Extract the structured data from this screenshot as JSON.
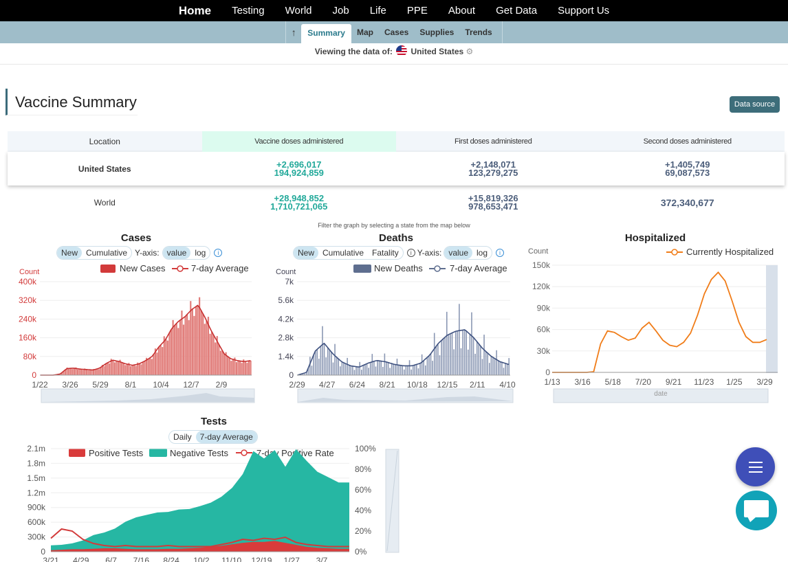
{
  "topnav": [
    "Home",
    "Testing",
    "World",
    "Job",
    "Life",
    "PPE",
    "About",
    "Get Data",
    "Support Us"
  ],
  "subnav": {
    "up_icon": "arrow-up-icon",
    "tabs": [
      "Summary",
      "Map",
      "Cases",
      "Supplies",
      "Trends"
    ],
    "active": "Summary"
  },
  "viewing": {
    "label": "Viewing the data of:",
    "location": "United States"
  },
  "page_title": "Vaccine Summary",
  "data_source_label": "Data source",
  "vaccine_table": {
    "headers": [
      "Location",
      "Vaccine doses administered",
      "First doses administered",
      "Second doses administered"
    ],
    "rows": [
      {
        "location": "United States",
        "doses_new": "+2,696,017",
        "doses_total": "194,924,859",
        "first_new": "+2,148,071",
        "first_total": "123,279,275",
        "second_new": "+1,405,749",
        "second_total": "69,087,573"
      },
      {
        "location": "World",
        "doses_new": "+28,948,852",
        "doses_total": "1,710,721,065",
        "first_new": "+15,819,326",
        "first_total": "978,653,471",
        "second_total": "372,340,677"
      }
    ]
  },
  "filter_note": "Filter the graph by selecting a state from the map below",
  "colors": {
    "cases": "#d23a3a",
    "deaths": "#5e6e8f",
    "hospitalized": "#f07c18",
    "positive": "#d93b3b",
    "negative": "#26b7a3",
    "accent": "#2a7a8c"
  },
  "cases_chart": {
    "title": "Cases",
    "toggle": [
      "New",
      "Cumulative"
    ],
    "yaxis_label": "Y-axis:",
    "scale": [
      "value",
      "log"
    ],
    "legend": [
      "New Cases",
      "7-day Average"
    ],
    "count_label": "Count",
    "yticks": [
      "400k",
      "320k",
      "240k",
      "160k",
      "80k",
      "0"
    ],
    "xticks": [
      "1/22",
      "3/26",
      "5/29",
      "8/1",
      "10/4",
      "12/7",
      "2/9"
    ]
  },
  "deaths_chart": {
    "title": "Deaths",
    "toggle": [
      "New",
      "Cumulative",
      "Fatality"
    ],
    "yaxis_label": "Y-axis:",
    "scale": [
      "value",
      "log"
    ],
    "legend": [
      "New Deaths",
      "7-day Average"
    ],
    "count_label": "Count",
    "yticks": [
      "7k",
      "5.6k",
      "4.2k",
      "2.8k",
      "1.4k",
      "0"
    ],
    "xticks": [
      "2/29",
      "4/27",
      "6/24",
      "8/21",
      "10/18",
      "12/15",
      "2/11",
      "4/10"
    ]
  },
  "hosp_chart": {
    "title": "Hospitalized",
    "legend": "Currently Hospitalized",
    "count_label": "Count",
    "yticks": [
      "150k",
      "120k",
      "90k",
      "60k",
      "30k",
      "0"
    ],
    "xticks": [
      "1/13",
      "3/16",
      "5/18",
      "7/20",
      "9/21",
      "11/23",
      "1/25",
      "3/29"
    ],
    "zoom_label": "date"
  },
  "tests_chart": {
    "title": "Tests",
    "toggle": [
      "Daily",
      "7-day Average"
    ],
    "legend": [
      "Positive Tests",
      "Negative Tests",
      "7-day Positive Rate"
    ],
    "yticks": [
      "2.1m",
      "1.8m",
      "1.5m",
      "1.2m",
      "900k",
      "600k",
      "300k",
      "0"
    ],
    "rticks": [
      "100%",
      "80%",
      "60%",
      "40%",
      "20%",
      "0%"
    ],
    "xticks": [
      "3/21",
      "4/29",
      "6/7",
      "7/16",
      "8/24",
      "10/2",
      "11/10",
      "12/19",
      "1/27",
      "3/7"
    ]
  },
  "fab": {
    "menu_icon": "menu-icon",
    "chat_icon": "chat-icon"
  }
}
